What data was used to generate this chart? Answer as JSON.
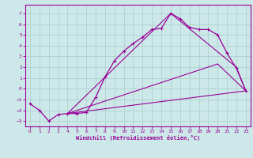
{
  "xlabel": "Windchill (Refroidissement éolien,°C)",
  "background_color": "#cce8e8",
  "grid_color": "#aacccc",
  "line_color": "#990099",
  "xlim": [
    -0.5,
    23.5
  ],
  "ylim": [
    -3.5,
    7.8
  ],
  "xticks": [
    0,
    1,
    2,
    3,
    4,
    5,
    6,
    7,
    8,
    9,
    10,
    11,
    12,
    13,
    14,
    15,
    16,
    17,
    18,
    19,
    20,
    21,
    22,
    23
  ],
  "yticks": [
    -3,
    -2,
    -1,
    0,
    1,
    2,
    3,
    4,
    5,
    6,
    7
  ],
  "series1_x": [
    0,
    1,
    2,
    3,
    4,
    5,
    6,
    7,
    8,
    9,
    10,
    11,
    12,
    13,
    14,
    15,
    16,
    17,
    18,
    19,
    20,
    21,
    22,
    23
  ],
  "series1_y": [
    -1.4,
    -2.0,
    -3.0,
    -2.4,
    -2.3,
    -2.3,
    -2.2,
    -0.8,
    1.1,
    2.6,
    3.5,
    4.2,
    4.8,
    5.5,
    5.6,
    7.0,
    6.5,
    5.7,
    5.5,
    5.5,
    5.0,
    3.3,
    1.9,
    -0.2
  ],
  "line1_x": [
    4,
    15,
    22,
    23
  ],
  "line1_y": [
    -2.3,
    7.0,
    2.0,
    -0.2
  ],
  "line2_x": [
    4,
    20,
    23
  ],
  "line2_y": [
    -2.3,
    2.3,
    -0.2
  ],
  "line3_x": [
    4,
    23
  ],
  "line3_y": [
    -2.3,
    -0.2
  ]
}
